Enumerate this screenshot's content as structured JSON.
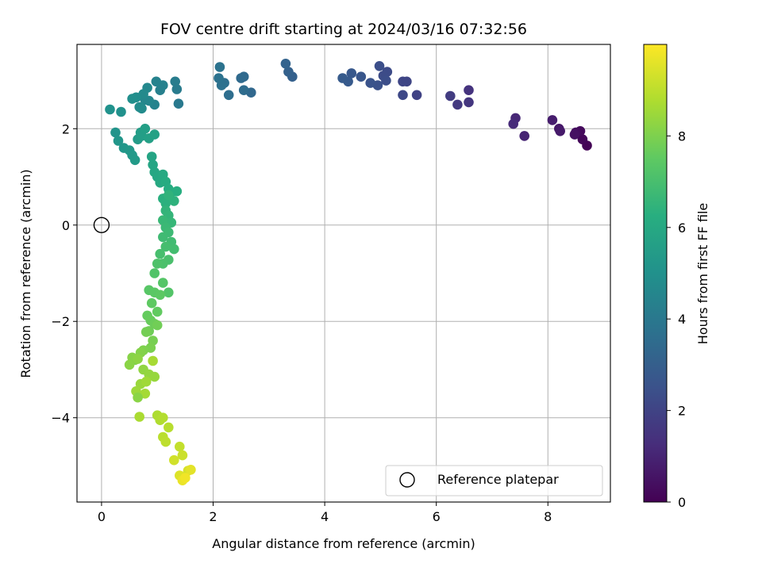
{
  "chart_data": {
    "type": "scatter",
    "title": "FOV centre drift starting at 2024/03/16 07:32:56",
    "xlabel": "Angular distance from reference (arcmin)",
    "ylabel": "Rotation from reference (arcmin)",
    "xlim": [
      -0.44,
      9.12
    ],
    "ylim": [
      -5.75,
      3.75
    ],
    "xticks": [
      0,
      2,
      4,
      6,
      8
    ],
    "yticks": [
      -4,
      -2,
      0,
      2
    ],
    "grid": true,
    "colormap": "viridis",
    "colorbar": {
      "label": "Hours from first FF file",
      "range": [
        0,
        10
      ],
      "ticks": [
        0,
        2,
        4,
        6,
        8
      ]
    },
    "reference_point": {
      "name": "Reference platepar",
      "x": 0,
      "y": 0,
      "marker": "open-circle"
    },
    "legend": {
      "position": "bottom-right",
      "entries": [
        "Reference platepar"
      ]
    },
    "series": [
      {
        "color_by": "hours",
        "x": [
          8.7,
          8.62,
          8.58,
          8.5,
          8.48,
          8.2,
          8.22,
          8.08,
          7.58,
          7.42,
          7.38,
          6.58,
          6.58,
          6.38,
          6.25,
          5.65,
          5.47,
          5.4,
          5.4,
          5.12,
          5.05,
          5.1,
          4.98,
          4.95,
          4.82,
          4.65,
          4.48,
          4.42,
          4.32,
          3.42,
          3.35,
          3.3,
          2.68,
          2.55,
          2.5,
          2.55,
          2.28,
          2.2,
          2.15,
          2.1,
          2.12,
          1.38,
          1.35,
          1.32,
          1.05,
          1.1,
          0.98,
          0.95,
          0.85,
          0.78,
          0.82,
          0.75,
          0.72,
          0.68,
          0.62,
          0.55,
          0.35,
          0.15,
          0.25,
          0.3,
          0.4,
          0.5,
          0.55,
          0.6,
          0.65,
          0.7,
          0.72,
          0.78,
          0.85,
          0.95,
          0.9,
          0.92,
          0.95,
          1.0,
          1.05,
          1.1,
          1.15,
          1.2,
          1.25,
          1.35,
          1.1,
          1.15,
          1.3,
          1.2,
          1.15,
          1.2,
          1.25,
          1.1,
          1.15,
          1.2,
          1.1,
          1.25,
          1.3,
          1.15,
          1.05,
          1.2,
          1.1,
          1.0,
          0.95,
          1.2,
          1.1,
          0.85,
          0.95,
          1.05,
          0.9,
          1.0,
          0.82,
          0.88,
          0.95,
          0.85,
          1.0,
          0.8,
          0.92,
          0.88,
          0.75,
          0.6,
          0.7,
          0.55,
          0.5,
          0.65,
          0.75,
          0.85,
          0.95,
          0.7,
          0.62,
          0.8,
          0.78,
          0.65,
          0.92,
          0.68,
          1.0,
          1.05,
          1.1,
          1.2,
          1.1,
          1.15,
          1.4,
          1.45,
          1.3,
          1.55,
          1.4,
          1.6,
          1.45,
          1.5
        ],
        "y": [
          1.65,
          1.78,
          1.95,
          1.92,
          1.88,
          2.0,
          1.95,
          2.18,
          1.85,
          2.22,
          2.1,
          2.8,
          2.55,
          2.5,
          2.68,
          2.7,
          2.98,
          2.98,
          2.7,
          3.18,
          3.1,
          3.0,
          3.3,
          2.9,
          2.95,
          3.08,
          3.15,
          2.98,
          3.05,
          3.08,
          3.18,
          3.35,
          2.75,
          3.08,
          3.05,
          2.8,
          2.7,
          2.95,
          2.9,
          3.05,
          3.28,
          2.52,
          2.82,
          2.98,
          2.8,
          2.9,
          2.98,
          2.5,
          2.58,
          2.6,
          2.85,
          2.72,
          2.42,
          2.45,
          2.65,
          2.62,
          2.35,
          2.4,
          1.92,
          1.75,
          1.6,
          1.55,
          1.45,
          1.35,
          1.78,
          1.92,
          1.85,
          2.0,
          1.8,
          1.88,
          1.42,
          1.25,
          1.1,
          1.0,
          0.88,
          1.05,
          0.9,
          0.75,
          0.68,
          0.7,
          0.55,
          0.45,
          0.5,
          0.62,
          0.3,
          0.2,
          0.05,
          0.1,
          -0.05,
          -0.15,
          -0.25,
          -0.35,
          -0.5,
          -0.45,
          -0.6,
          -0.72,
          -0.8,
          -0.8,
          -1.0,
          -1.4,
          -1.2,
          -1.35,
          -1.4,
          -1.45,
          -1.62,
          -1.8,
          -1.88,
          -1.98,
          -2.05,
          -2.2,
          -2.08,
          -2.22,
          -2.4,
          -2.55,
          -2.6,
          -2.8,
          -2.65,
          -2.75,
          -2.9,
          -2.78,
          -3.0,
          -3.1,
          -3.15,
          -3.3,
          -3.45,
          -3.25,
          -3.5,
          -3.58,
          -2.82,
          -3.98,
          -3.95,
          -4.05,
          -4.0,
          -4.2,
          -4.4,
          -4.5,
          -4.6,
          -4.78,
          -4.88,
          -5.1,
          -5.2,
          -5.08,
          -5.3,
          -5.25
        ],
        "hours": [
          0.05,
          0.15,
          0.25,
          0.35,
          0.45,
          0.6,
          0.7,
          0.8,
          1.0,
          1.1,
          1.2,
          1.45,
          1.55,
          1.65,
          1.75,
          1.95,
          2.05,
          2.1,
          2.15,
          2.25,
          2.3,
          2.35,
          2.4,
          2.45,
          2.55,
          2.65,
          2.75,
          2.8,
          2.85,
          3.05,
          3.1,
          3.15,
          3.35,
          3.4,
          3.45,
          3.5,
          3.6,
          3.65,
          3.7,
          3.75,
          3.8,
          4.05,
          4.1,
          4.15,
          4.3,
          4.35,
          4.4,
          4.45,
          4.55,
          4.6,
          4.65,
          4.7,
          4.75,
          4.8,
          4.85,
          4.9,
          5.0,
          5.05,
          5.15,
          5.2,
          5.25,
          5.3,
          5.35,
          5.4,
          5.45,
          5.5,
          5.55,
          5.6,
          5.65,
          5.7,
          5.8,
          5.85,
          5.9,
          5.95,
          6.0,
          6.05,
          6.1,
          6.15,
          6.2,
          6.25,
          6.3,
          6.35,
          6.4,
          6.45,
          6.5,
          6.55,
          6.6,
          6.65,
          6.7,
          6.75,
          6.8,
          6.85,
          6.9,
          6.95,
          7.0,
          7.05,
          7.1,
          7.15,
          7.2,
          7.25,
          7.3,
          7.35,
          7.4,
          7.45,
          7.5,
          7.55,
          7.6,
          7.65,
          7.7,
          7.75,
          7.8,
          7.85,
          7.9,
          7.95,
          8.0,
          8.05,
          8.1,
          8.15,
          8.2,
          8.25,
          8.3,
          8.35,
          8.4,
          8.45,
          8.5,
          8.55,
          8.6,
          8.2,
          8.65,
          8.7,
          8.75,
          8.8,
          8.85,
          8.9,
          8.95,
          9.0,
          9.1,
          9.2,
          9.3,
          9.4,
          9.5,
          9.6,
          9.7,
          9.8
        ]
      }
    ]
  }
}
